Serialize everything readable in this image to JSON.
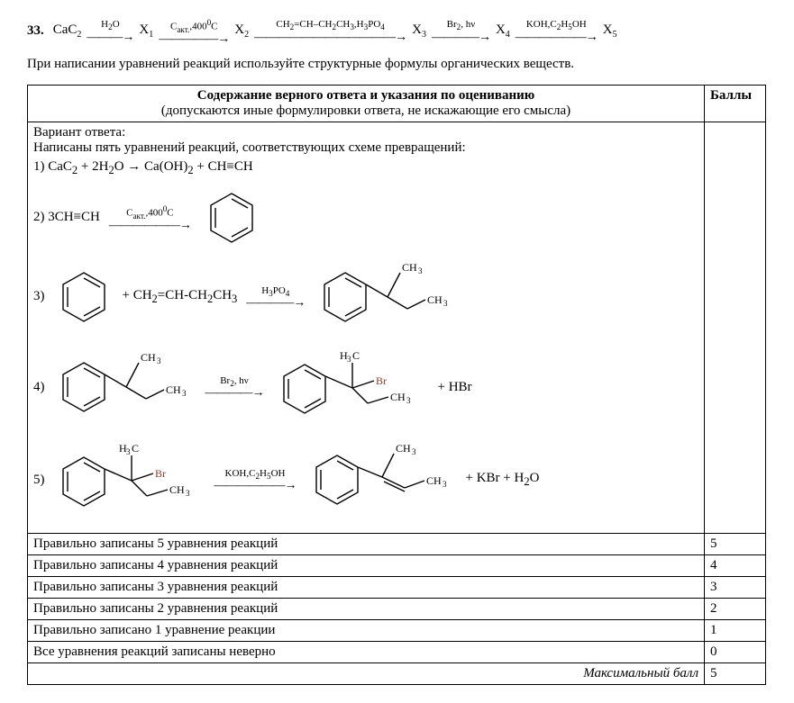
{
  "question_number": "33.",
  "scheme": {
    "start": "CaC",
    "start_sub": "2",
    "steps": [
      {
        "label_html": "H<sub>2</sub>O",
        "target": "X",
        "tsub": "1"
      },
      {
        "label_html": "C<sub>акт.</sub>,400<sup>0</sup>C",
        "target": "X",
        "tsub": "2"
      },
      {
        "label_html": "CH<sub>2</sub>=CH–CH<sub>2</sub>CH<sub>3</sub>,H<sub>3</sub>PO<sub>4</sub>",
        "target": "X",
        "tsub": "3"
      },
      {
        "label_html": "Br<sub>2</sub>, hν",
        "target": "X",
        "tsub": "4"
      },
      {
        "label_html": "KOH,C<sub>2</sub>H<sub>5</sub>OH",
        "target": "X",
        "tsub": "5"
      }
    ]
  },
  "instruction": "При написании уравнений реакций используйте структурные формулы органических веществ.",
  "table_header_main": "Содержание верного ответа и указания по оцениванию",
  "table_header_sub": "(допускаются иные формулировки ответа, не искажающие его смысла)",
  "points_label": "Баллы",
  "answer_intro1": "Вариант ответа:",
  "answer_intro2": "Написаны пять уравнений реакций, соответствующих схеме превращений:",
  "eq1_html": "1) CaC<sub>2</sub> + 2H<sub>2</sub>O → Ca(OH)<sub>2</sub> + CH≡CH",
  "eq2_prefix": "2) 3CH≡CH",
  "eq2_arrow_html": "C<sub>акт.</sub>,400<sup>0</sup>C",
  "eq3_prefix": "3)",
  "eq3_mid_html": "+ CH<sub>2</sub>=CH-CH<sub>2</sub>CH<sub>3</sub>",
  "eq3_arrow_html": "H<sub>3</sub>PO<sub>4</sub>",
  "eq4_prefix": "4)",
  "eq4_arrow_html": "Br<sub>2</sub>, hν",
  "eq4_tail": "+ HBr",
  "eq5_prefix": "5)",
  "eq5_arrow_html": "KOH,C<sub>2</sub>H<sub>5</sub>OH",
  "eq5_tail_html": "+ KBr + H<sub>2</sub>O",
  "rubric": [
    {
      "text": "Правильно записаны 5 уравнения реакций",
      "pts": "5"
    },
    {
      "text": "Правильно записаны 4 уравнения реакций",
      "pts": "4"
    },
    {
      "text": "Правильно записаны 3 уравнения реакций",
      "pts": "3"
    },
    {
      "text": "Правильно записаны 2 уравнения реакций",
      "pts": "2"
    },
    {
      "text": "Правильно записано 1 уравнение реакции",
      "pts": "1"
    },
    {
      "text": "Все уравнения реакций записаны неверно",
      "pts": "0"
    }
  ],
  "max_label": "Максимальный балл",
  "max_pts": "5",
  "svg": {
    "benzene_stroke": "#000000",
    "label_ch3": "CH",
    "label_h3c": "H",
    "label_br": "Br"
  }
}
